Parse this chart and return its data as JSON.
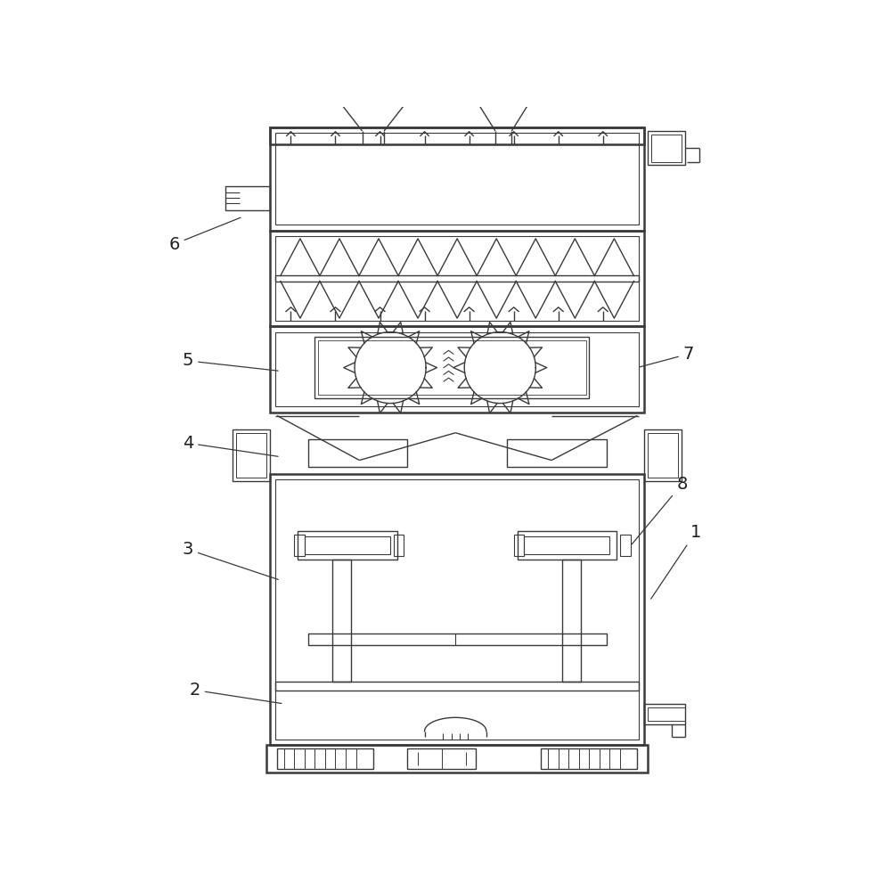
{
  "bg_color": "#ffffff",
  "line_color": "#3a3a3a",
  "lw": 1.0,
  "tlw": 1.8,
  "fig_width": 9.9,
  "fig_height": 10.0
}
